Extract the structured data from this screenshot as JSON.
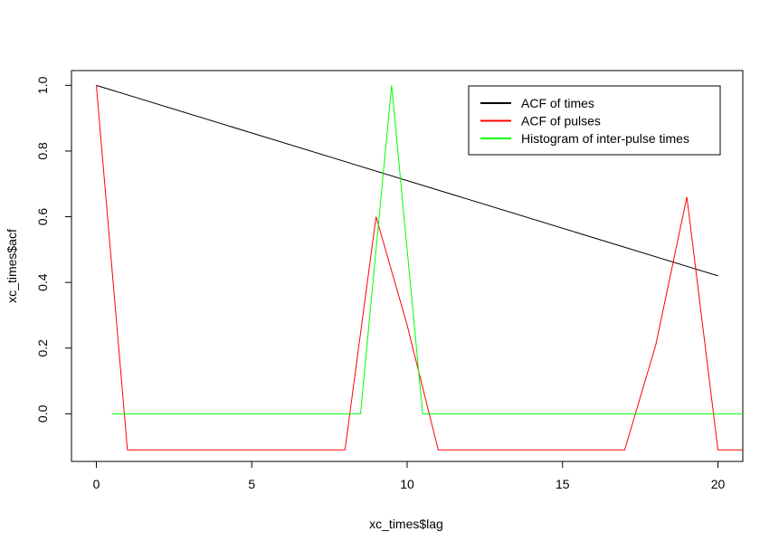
{
  "chart_data": {
    "type": "line",
    "xlabel": "xc_times$lag",
    "ylabel": "xc_times$acf",
    "xlim": [
      -0.8,
      20.8
    ],
    "ylim": [
      -0.145,
      1.045
    ],
    "x_ticks": [
      0,
      5,
      10,
      15,
      20
    ],
    "y_ticks": [
      0.0,
      0.2,
      0.4,
      0.6,
      0.8,
      1.0
    ],
    "grid": false,
    "legend_position": "top-right",
    "series": [
      {
        "name": "ACF of times",
        "color": "#000000",
        "x": [
          0,
          20
        ],
        "y": [
          1.0,
          0.42
        ]
      },
      {
        "name": "ACF of pulses",
        "color": "#ff0000",
        "x": [
          0,
          1,
          8,
          9,
          10,
          11,
          17,
          18,
          19,
          20,
          20.8
        ],
        "y": [
          1.0,
          -0.11,
          -0.11,
          0.6,
          0.27,
          -0.11,
          -0.11,
          0.21,
          0.66,
          -0.11,
          -0.11
        ]
      },
      {
        "name": "Histogram of inter-pulse times",
        "color": "#00ff00",
        "x": [
          0.5,
          8.5,
          9.5,
          10.5,
          20.8
        ],
        "y": [
          0,
          0,
          1.0,
          0,
          0
        ]
      }
    ]
  }
}
